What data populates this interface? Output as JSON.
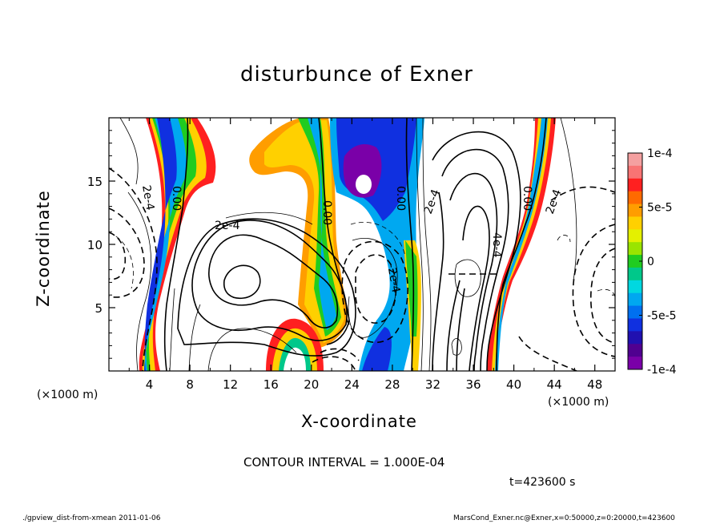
{
  "chart_data": {
    "type": "heatmap",
    "title": "disturbunce of Exner",
    "xlabel": "X-coordinate",
    "ylabel": "Z-coordinate",
    "x_unit_label": "(×1000 m)",
    "xlim": [
      0,
      50
    ],
    "ylim": [
      0,
      20
    ],
    "x_ticks": [
      4,
      8,
      12,
      16,
      20,
      24,
      28,
      32,
      36,
      40,
      44,
      48
    ],
    "y_ticks": [
      5,
      10,
      15
    ],
    "colorbar": {
      "range": [
        -0.0001,
        0.0001
      ],
      "tick_labels": [
        "1e-4",
        "5e-5",
        "0",
        "-5e-5",
        "-1e-4"
      ],
      "tick_values": [
        0.0001,
        5e-05,
        0,
        -5e-05,
        -0.0001
      ],
      "colors": [
        "#f4a0a0",
        "#f87474",
        "#ff2020",
        "#ff6a00",
        "#ff9d00",
        "#ffd000",
        "#e4f000",
        "#9ae400",
        "#20cc20",
        "#00c88a",
        "#00d8e0",
        "#00a8f0",
        "#0070f0",
        "#1030e0",
        "#2010b0",
        "#500090",
        "#7a00a8"
      ]
    },
    "contour_labels": [
      "2e-4",
      "0.00",
      "2e-4",
      "0.00",
      "0.00",
      "2e-4",
      "0.00",
      "2e-4",
      "4e-4",
      "0.00",
      "2e-4",
      "-2e-4"
    ],
    "contour_interval": "CONTOUR INTERVAL = 1.000E-04",
    "time": "t=423600 s"
  },
  "footer": {
    "left": "./gpview_dist-from-xmean  2011-01-06",
    "right": "MarsCond_Exner.nc@Exner,x=0:50000,z=0:20000,t=423600"
  }
}
